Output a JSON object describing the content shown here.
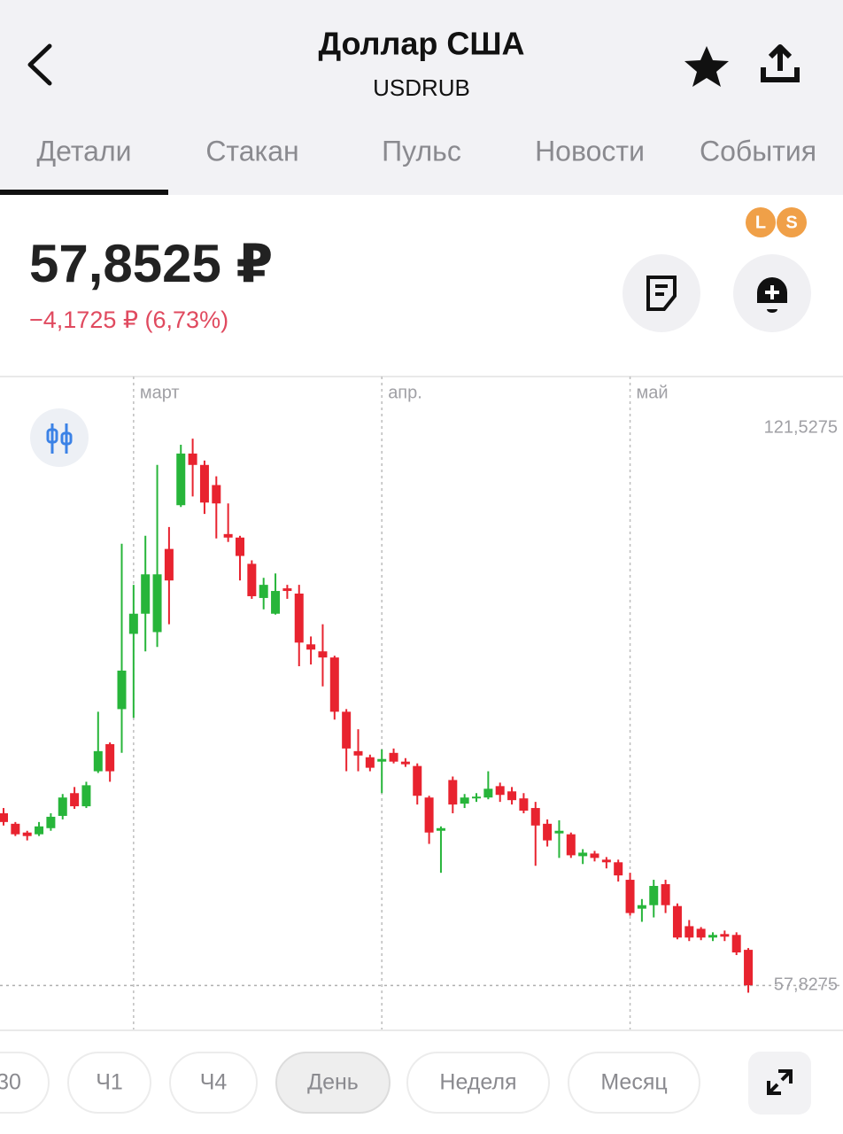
{
  "header": {
    "title": "Доллар США",
    "subtitle": "USDRUB"
  },
  "tabs": [
    "Детали",
    "Стакан",
    "Пульс",
    "Новости",
    "События"
  ],
  "badges": [
    "L",
    "S"
  ],
  "price": {
    "value": "57,8525 ₽",
    "change": "−4,1725 ₽ (6,73%)"
  },
  "chart_data": {
    "type": "candlestick",
    "categories": [
      null,
      null,
      null,
      null,
      null,
      null,
      null,
      null,
      null,
      null,
      null,
      "март",
      null,
      null,
      null,
      null,
      null,
      null,
      null,
      null,
      null,
      null,
      null,
      null,
      null,
      null,
      null,
      null,
      null,
      null,
      null,
      null,
      "апр.",
      null,
      null,
      null,
      null,
      null,
      null,
      null,
      null,
      null,
      null,
      null,
      null,
      null,
      null,
      null,
      null,
      null,
      null,
      null,
      null,
      "май",
      null,
      null,
      null,
      null,
      null,
      null,
      null,
      null,
      null,
      null
    ],
    "open": [
      77.5,
      76.3,
      75.3,
      75.1,
      75.8,
      77.2,
      79.8,
      78.3,
      82.3,
      85.4,
      89.4,
      98.0,
      100.3,
      98.2,
      107.7,
      112.7,
      118.6,
      117.3,
      115.0,
      109.4,
      109.0,
      106.0,
      102.1,
      100.3,
      103.2,
      102.6,
      96.8,
      96.0,
      95.3,
      89.1,
      84.6,
      83.9,
      83.4,
      84.4,
      83.4,
      82.9,
      79.3,
      75.5,
      81.3,
      78.6,
      79.2,
      79.3,
      80.6,
      80.0,
      79.2,
      78.1,
      76.3,
      75.2,
      75.1,
      72.6,
      72.9,
      72.2,
      71.9,
      69.9,
      66.6,
      67.0,
      69.4,
      66.9,
      64.6,
      64.3,
      63.3,
      63.7,
      63.6,
      61.9
    ],
    "high": [
      78.1,
      76.5,
      75.5,
      76.5,
      77.5,
      79.7,
      80.5,
      81.1,
      89.1,
      85.6,
      108.3,
      103.6,
      109.2,
      117.3,
      110.2,
      119.6,
      120.3,
      117.8,
      116.0,
      112.9,
      109.2,
      106.4,
      104.4,
      104.9,
      103.6,
      103.6,
      97.7,
      99.1,
      95.5,
      89.4,
      87.1,
      84.2,
      84.8,
      84.9,
      83.8,
      83.2,
      79.5,
      76.0,
      81.7,
      79.7,
      79.8,
      82.3,
      81.0,
      80.5,
      79.8,
      78.8,
      76.8,
      76.7,
      75.3,
      73.4,
      73.2,
      72.5,
      72.2,
      70.7,
      67.7,
      69.9,
      69.9,
      67.2,
      65.3,
      64.5,
      63.9,
      64.1,
      63.9,
      62.1
    ],
    "low": [
      76.1,
      74.9,
      74.4,
      74.9,
      75.5,
      76.8,
      78.0,
      78.1,
      82.1,
      81.1,
      84.4,
      88.4,
      96.0,
      96.5,
      99.1,
      112.5,
      113.7,
      111.7,
      108.9,
      108.5,
      104.1,
      102.0,
      100.8,
      100.2,
      102.0,
      94.3,
      94.5,
      92.0,
      88.2,
      82.3,
      82.3,
      82.3,
      79.8,
      83.2,
      82.8,
      78.5,
      74.0,
      70.7,
      77.5,
      78.1,
      78.8,
      79.1,
      78.8,
      78.5,
      77.5,
      71.5,
      73.7,
      72.4,
      72.4,
      71.7,
      72.0,
      71.2,
      69.7,
      65.8,
      65.1,
      65.6,
      66.1,
      63.1,
      62.9,
      63.0,
      62.9,
      62.9,
      61.3,
      57.0
    ],
    "close": [
      76.5,
      75.1,
      74.9,
      76.0,
      77.1,
      79.3,
      78.3,
      80.7,
      84.6,
      82.3,
      93.8,
      100.3,
      104.8,
      104.8,
      104.1,
      118.6,
      117.3,
      113.0,
      112.9,
      109.0,
      106.9,
      102.3,
      103.6,
      102.9,
      102.9,
      97.0,
      96.2,
      95.3,
      89.1,
      84.9,
      84.1,
      82.7,
      83.7,
      83.4,
      83.1,
      79.5,
      75.3,
      75.8,
      78.5,
      79.3,
      79.4,
      80.3,
      79.6,
      79.0,
      77.8,
      76.1,
      74.4,
      75.5,
      72.7,
      73.0,
      72.4,
      71.9,
      70.4,
      66.1,
      67.0,
      69.2,
      67.0,
      63.3,
      63.3,
      63.3,
      63.6,
      63.4,
      61.6,
      57.85
    ],
    "up_color": "#27b53a",
    "down_color": "#e8232f",
    "ylim": [
      52.8,
      127.4
    ],
    "yticks": [
      {
        "value": 121.5275,
        "label": "121,5275"
      },
      {
        "value": 57.8275,
        "label": "57,8275"
      }
    ]
  },
  "periods": [
    "30",
    "Ч1",
    "Ч4",
    "День",
    "Неделя",
    "Месяц"
  ]
}
